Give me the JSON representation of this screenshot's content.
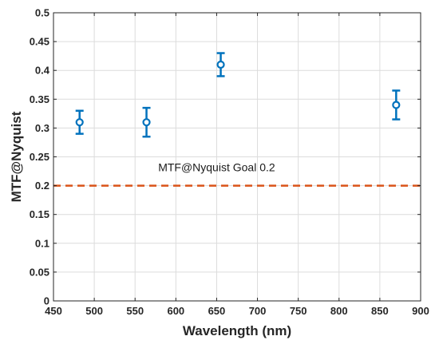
{
  "chart_data": {
    "type": "scatter",
    "xlabel": "Wavelength (nm)",
    "ylabel": "MTF@Nyquist",
    "xlim": [
      450,
      900
    ],
    "ylim": [
      0,
      0.5
    ],
    "x_ticks": [
      "450",
      "500",
      "550",
      "600",
      "650",
      "700",
      "750",
      "800",
      "850",
      "900"
    ],
    "y_ticks": [
      "0",
      "0.05",
      "0.1",
      "0.15",
      "0.2",
      "0.25",
      "0.3",
      "0.35",
      "0.4",
      "0.45",
      "0.5"
    ],
    "grid": true,
    "series": [
      {
        "marker": "circle",
        "color": "#0072BD",
        "points": [
          {
            "x": 482,
            "y": 0.31,
            "y_low": 0.29,
            "y_high": 0.33
          },
          {
            "x": 564,
            "y": 0.31,
            "y_low": 0.285,
            "y_high": 0.335
          },
          {
            "x": 655,
            "y": 0.41,
            "y_low": 0.39,
            "y_high": 0.43
          },
          {
            "x": 870,
            "y": 0.34,
            "y_low": 0.315,
            "y_high": 0.365
          }
        ]
      }
    ],
    "reference_line": {
      "y": 0.2,
      "style": "dashed",
      "color": "#D95319",
      "label": "MTF@Nyquist Goal 0.2",
      "label_x": 650,
      "label_y": 0.225
    }
  }
}
